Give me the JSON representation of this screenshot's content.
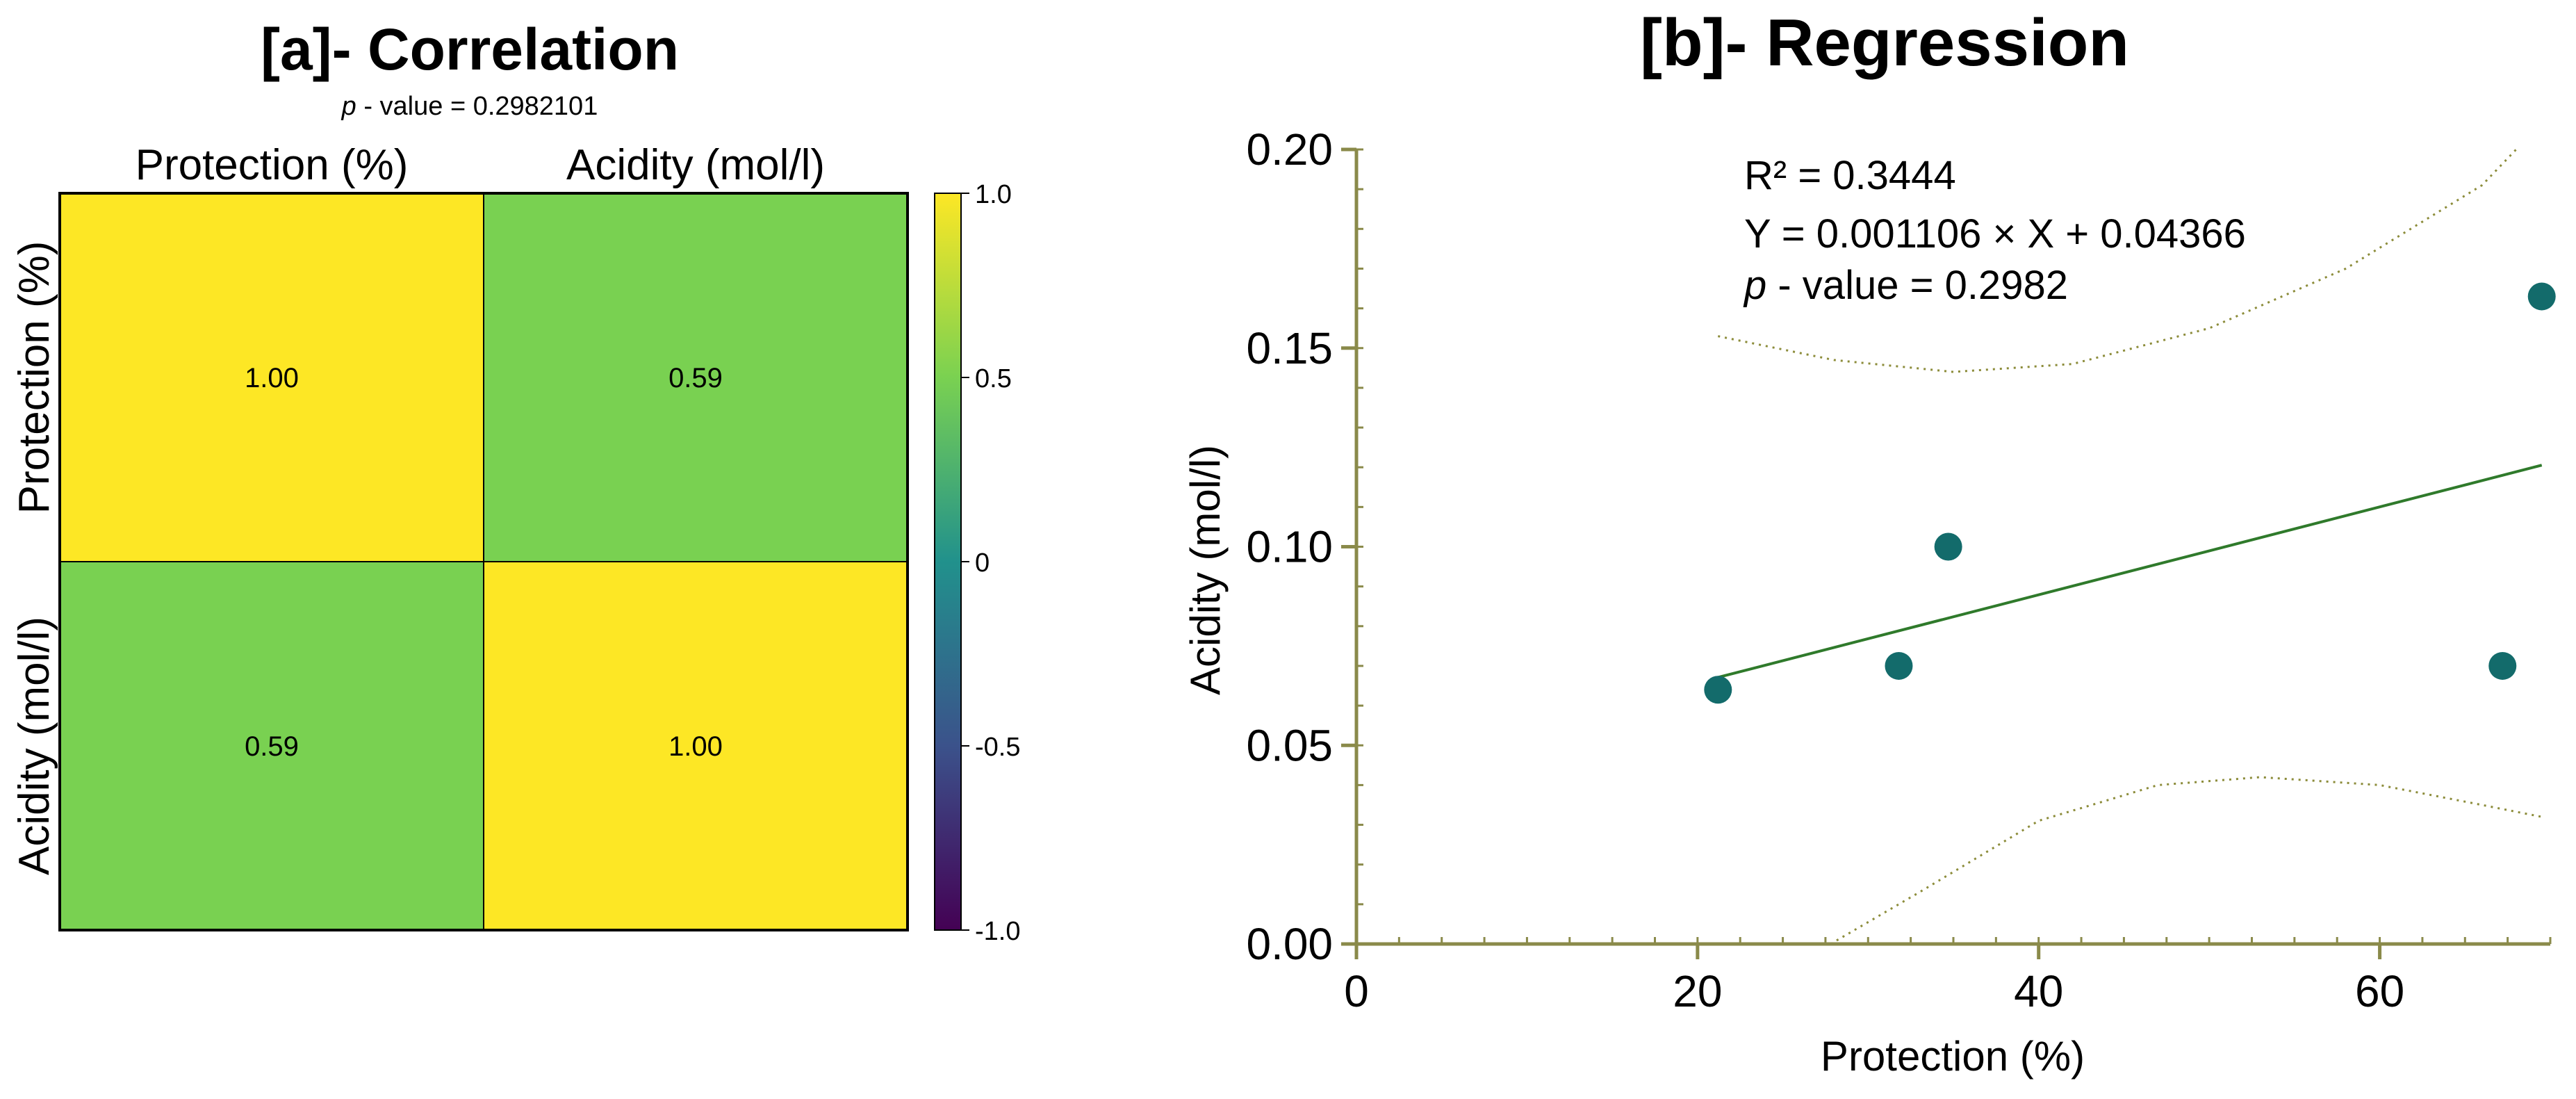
{
  "chart_data": [
    {
      "type": "heatmap",
      "title": "[a]- Correlation",
      "subtitle": {
        "italic": "p",
        "rest": " - value = 0.2982101"
      },
      "variables": [
        "Protection (%)",
        "Acidity (mol/l)"
      ],
      "values": [
        [
          1.0,
          0.59
        ],
        [
          0.59,
          1.0
        ]
      ],
      "cell_labels": [
        [
          "1.00",
          "0.59"
        ],
        [
          "0.59",
          "1.00"
        ]
      ],
      "colorbar": {
        "range": [
          -1.0,
          1.0
        ],
        "ticks": [
          1.0,
          0.5,
          0,
          -0.5,
          -1.0
        ],
        "tick_labels": [
          "1.0",
          "0.5",
          "0",
          "-0.5",
          "-1.0"
        ],
        "colors": {
          "high": "#fde725",
          "mid_high": "#7ad151",
          "mid": "#21918c",
          "mid_low": "#3b528b",
          "low": "#440154"
        }
      },
      "cell_colors": [
        [
          "#fde725",
          "#79d151"
        ],
        [
          "#79d151",
          "#fde725"
        ]
      ]
    },
    {
      "type": "scatter",
      "title": "[b]- Regression",
      "xlabel": "Protection (%)",
      "ylabel": "Acidity (mol/l)",
      "xlim": [
        0,
        70
      ],
      "ylim": [
        0.0,
        0.2
      ],
      "x_ticks": [
        0,
        20,
        40,
        60
      ],
      "x_tick_labels": [
        "0",
        "20",
        "40",
        "60"
      ],
      "y_ticks": [
        0.0,
        0.05,
        0.1,
        0.15,
        0.2
      ],
      "y_tick_labels": [
        "0.00",
        "0.05",
        "0.10",
        "0.15",
        "0.20"
      ],
      "points": [
        {
          "x": 21.2,
          "y": 0.064
        },
        {
          "x": 31.8,
          "y": 0.07
        },
        {
          "x": 34.7,
          "y": 0.1
        },
        {
          "x": 67.2,
          "y": 0.07
        },
        {
          "x": 69.5,
          "y": 0.163
        }
      ],
      "regression": {
        "slope": 0.001106,
        "intercept": 0.04366,
        "x_range": [
          21.2,
          69.5
        ]
      },
      "confidence_upper": [
        {
          "x": 21.2,
          "y": 0.153
        },
        {
          "x": 28,
          "y": 0.147
        },
        {
          "x": 35,
          "y": 0.144
        },
        {
          "x": 42,
          "y": 0.146
        },
        {
          "x": 50,
          "y": 0.155
        },
        {
          "x": 58,
          "y": 0.17
        },
        {
          "x": 66,
          "y": 0.191
        },
        {
          "x": 68,
          "y": 0.2
        }
      ],
      "confidence_lower": [
        {
          "x": 27.8,
          "y": 0.0
        },
        {
          "x": 33,
          "y": 0.013
        },
        {
          "x": 40,
          "y": 0.031
        },
        {
          "x": 47,
          "y": 0.04
        },
        {
          "x": 53,
          "y": 0.042
        },
        {
          "x": 60,
          "y": 0.04
        },
        {
          "x": 66,
          "y": 0.035
        },
        {
          "x": 69.5,
          "y": 0.032
        }
      ],
      "annotations": {
        "r2": "R² = 0.3444",
        "equation": "Y = 0.001106 × X + 0.04366",
        "pvalue_italic": "p",
        "pvalue_rest": " - value = 0.2982"
      },
      "colors": {
        "point": "#136b6b",
        "line": "#2f7a2b",
        "band": "#8c8c3a",
        "axis": "#8a8a4a"
      }
    }
  ]
}
